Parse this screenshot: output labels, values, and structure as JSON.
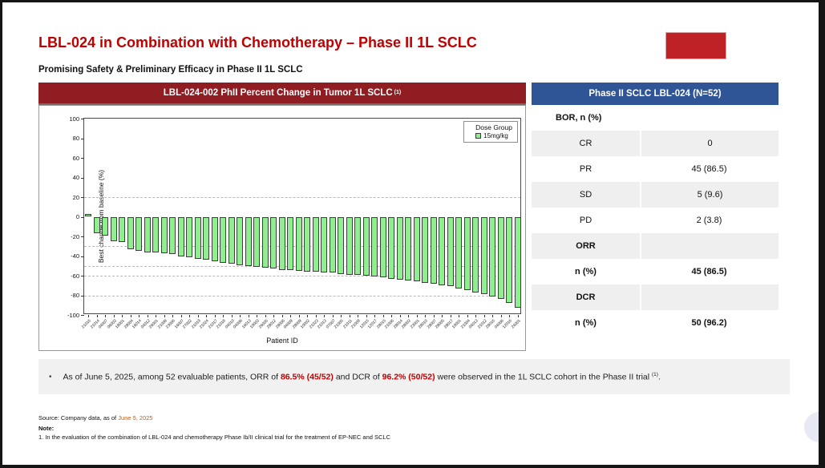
{
  "slide": {
    "title": "LBL-024 in Combination with Chemotherapy – Phase II 1L SCLC",
    "subtitle": "Promising Safety & Preliminary Efficacy in Phase II 1L SCLC",
    "accent_red": "#c00000",
    "logo_color": "#be2126"
  },
  "chart_panel": {
    "header_text": "LBL-024-002 PhII Percent Change in Tumor 1L SCLC",
    "header_superscript": "(1)",
    "header_bg": "#8f1d21"
  },
  "chart_data": {
    "type": "bar",
    "subtype": "waterfall",
    "title": "LBL-024-002 PhII Percent Change in Tumor 1L SCLC (1)",
    "xlabel": "Patient ID",
    "ylabel": "Best change from baseline (%)",
    "ylim": [
      -100,
      100
    ],
    "yticks": [
      100,
      80,
      60,
      40,
      20,
      0,
      -20,
      -40,
      -60,
      -80,
      -100
    ],
    "reference_lines": [
      20,
      -30,
      -50,
      -60,
      -80
    ],
    "grid": "dashed-reference-lines-only",
    "legend": {
      "title": "Dose Group",
      "position": "top-right",
      "entries": [
        {
          "label": "15mg/kg",
          "color": "#90ee90"
        }
      ]
    },
    "bar_color": "#90ee90",
    "bar_border": "#3e3e3e",
    "categories": [
      "21016",
      "21014",
      "04007",
      "06003",
      "18001",
      "28004",
      "16014",
      "04012",
      "26001",
      "21008",
      "23006",
      "16007",
      "27002",
      "21019",
      "21024",
      "21017",
      "21018",
      "04010",
      "04008",
      "16013",
      "10003",
      "26005",
      "28012",
      "28006",
      "04009",
      "28009",
      "10002",
      "21023",
      "21013",
      "07007",
      "21005",
      "21011",
      "21009",
      "12015",
      "12017",
      "28015",
      "21006",
      "28014",
      "28003",
      "23001",
      "28010",
      "28007",
      "28005",
      "28017",
      "10001",
      "21004",
      "04013",
      "21012",
      "28016",
      "04006",
      "12016",
      "24001"
    ],
    "values": [
      3,
      -17,
      -19,
      -25,
      -26,
      -33,
      -35,
      -36,
      -36,
      -37,
      -38,
      -40,
      -41,
      -43,
      -44,
      -45,
      -47,
      -48,
      -49,
      -50,
      -51,
      -52,
      -53,
      -54,
      -54,
      -55,
      -56,
      -56,
      -57,
      -57,
      -58,
      -59,
      -59,
      -60,
      -61,
      -62,
      -63,
      -64,
      -65,
      -66,
      -67,
      -68,
      -70,
      -71,
      -73,
      -75,
      -77,
      -79,
      -81,
      -84,
      -88,
      -93
    ]
  },
  "results_table": {
    "header": "Phase II SCLC LBL-024 (N=52)",
    "header_bg": "#2f5597",
    "rows": [
      {
        "label": "BOR, n (%)",
        "value": "",
        "bold": true,
        "variant": "section"
      },
      {
        "label": "CR",
        "value": "0",
        "bold": false,
        "variant": "shaded"
      },
      {
        "label": "PR",
        "value": "45 (86.5)",
        "bold": false,
        "variant": "plain"
      },
      {
        "label": "SD",
        "value": "5 (9.6)",
        "bold": false,
        "variant": "shaded"
      },
      {
        "label": "PD",
        "value": "2 (3.8)",
        "bold": false,
        "variant": "plain"
      },
      {
        "label": "ORR",
        "value": "",
        "bold": true,
        "variant": "shaded"
      },
      {
        "label": "n (%)",
        "value": "45 (86.5)",
        "bold": true,
        "variant": "plain"
      },
      {
        "label": "DCR",
        "value": "",
        "bold": true,
        "variant": "shaded"
      },
      {
        "label": "n (%)",
        "value": "50 (96.2)",
        "bold": true,
        "variant": "plain"
      }
    ]
  },
  "callout": {
    "bullet": "•",
    "segments": [
      {
        "text": "As of June 5, 2025, among 52 evaluable patients, ORR of ",
        "style": "normal"
      },
      {
        "text": "86.5% (45/52)",
        "style": "red-bold"
      },
      {
        "text": " and DCR of ",
        "style": "normal"
      },
      {
        "text": "96.2% (50/52)",
        "style": "red-bold"
      },
      {
        "text": " were observed in the 1L SCLC cohort in the Phase II trial ",
        "style": "normal"
      },
      {
        "text": "(1)",
        "style": "superscript"
      },
      {
        "text": ".",
        "style": "normal"
      }
    ]
  },
  "footer": {
    "source_prefix": "Source: Company data, as of ",
    "source_date": "June 5, 2025",
    "source_date_color": "#c55a11",
    "note_label": "Note:",
    "note_text": "1. In the evaluation of the combination of LBL-024 and chemotherapy Phase Ib/II clinical trial for the treatment of EP-NEC and SCLC"
  }
}
